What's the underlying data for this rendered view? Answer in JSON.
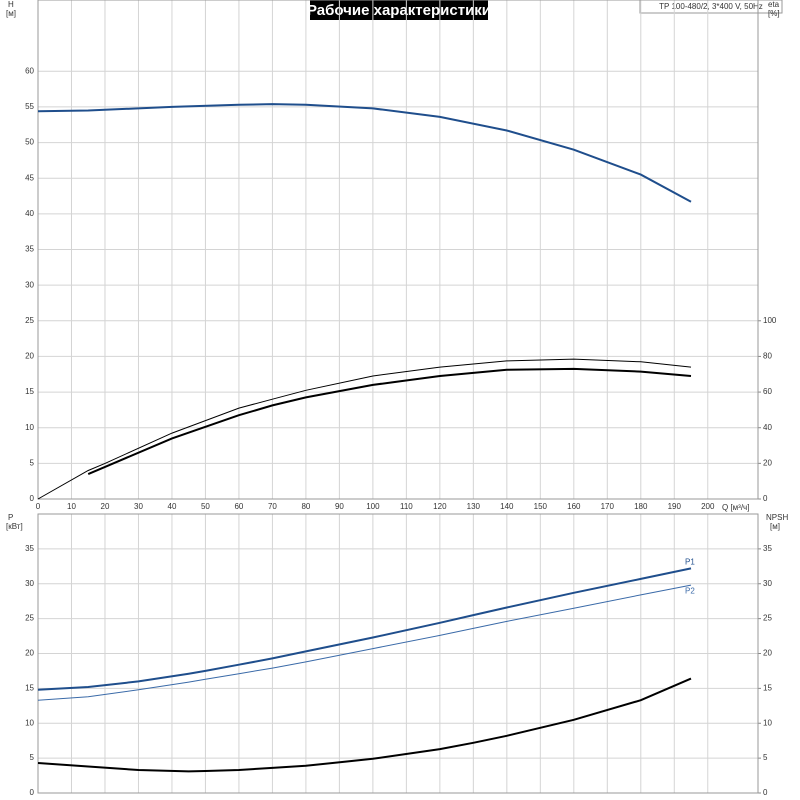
{
  "chart_data": [
    {
      "type": "line",
      "title": "Рабочие характеристики",
      "annotation": "TP 100-480/2, 3*400 V, 50Hz",
      "ylabel": "H",
      "yunit": "[м]",
      "y2label": "eta",
      "y2unit": "[%]",
      "xlabel": "Q [м³/ч]",
      "xlim": [
        0,
        215
      ],
      "xticks": [
        0,
        10,
        20,
        30,
        40,
        50,
        60,
        70,
        80,
        90,
        100,
        110,
        120,
        130,
        140,
        150,
        160,
        170,
        180,
        190,
        200
      ],
      "ylim": [
        0,
        70
      ],
      "yticks": [
        0,
        5,
        10,
        15,
        20,
        25,
        30,
        35,
        40,
        45,
        50,
        55,
        60
      ],
      "y2lim": [
        0,
        280
      ],
      "y2ticks": [
        0,
        20,
        40,
        60,
        80,
        100
      ],
      "grid": true,
      "x": [
        0,
        15,
        20,
        40,
        60,
        70,
        80,
        100,
        120,
        140,
        160,
        180,
        195
      ],
      "series": [
        {
          "color": "#1f4e8c",
          "line_width": 2,
          "values": [
            54.4,
            54.5,
            54.6,
            55,
            55.3,
            55.4,
            55.3,
            54.8,
            53.6,
            51.7,
            49,
            45.5,
            41.7
          ]
        },
        {
          "color": "#000000",
          "line_width": 1,
          "axis": "y2",
          "values": [
            0,
            16,
            20,
            37,
            51,
            56,
            61,
            69,
            74,
            77.5,
            78.5,
            77,
            74
          ]
        },
        {
          "color": "#000000",
          "line_width": 2,
          "axis": "y2",
          "values": [
            null,
            14,
            18,
            34,
            47,
            52.5,
            57,
            64,
            69,
            72.5,
            73,
            71.5,
            69
          ]
        }
      ]
    },
    {
      "type": "line",
      "ylabel": "P",
      "yunit": "[кВт]",
      "y2label": "NPSH",
      "y2unit": "[м]",
      "xlim": [
        0,
        215
      ],
      "ylim": [
        0,
        40
      ],
      "yticks": [
        0,
        5,
        10,
        15,
        20,
        25,
        30,
        35
      ],
      "y2lim": [
        0,
        40
      ],
      "y2ticks": [
        0,
        5,
        10,
        15,
        20,
        25,
        30,
        35
      ],
      "grid": true,
      "x": [
        0,
        15,
        30,
        45,
        50,
        60,
        70,
        80,
        100,
        120,
        130,
        140,
        160,
        180,
        195
      ],
      "series": [
        {
          "name": "P1",
          "color": "#1f4e8c",
          "line_width": 2,
          "values": [
            14.8,
            15.2,
            16,
            17.1,
            17.5,
            18.4,
            19.3,
            20.3,
            22.3,
            24.4,
            25.5,
            26.6,
            28.7,
            30.7,
            32.2
          ]
        },
        {
          "name": "P2",
          "color": "#3a6aa8",
          "line_width": 1,
          "values": [
            13.3,
            13.8,
            14.8,
            15.9,
            16.3,
            17.1,
            17.9,
            18.8,
            20.7,
            22.6,
            23.6,
            24.6,
            26.5,
            28.4,
            29.8
          ]
        },
        {
          "color": "#000000",
          "line_width": 2,
          "axis": "y2",
          "values": [
            4.3,
            3.8,
            3.3,
            3.1,
            3.15,
            3.3,
            3.6,
            3.9,
            4.9,
            6.3,
            7.2,
            8.2,
            10.5,
            13.3,
            16.4
          ]
        }
      ]
    }
  ]
}
